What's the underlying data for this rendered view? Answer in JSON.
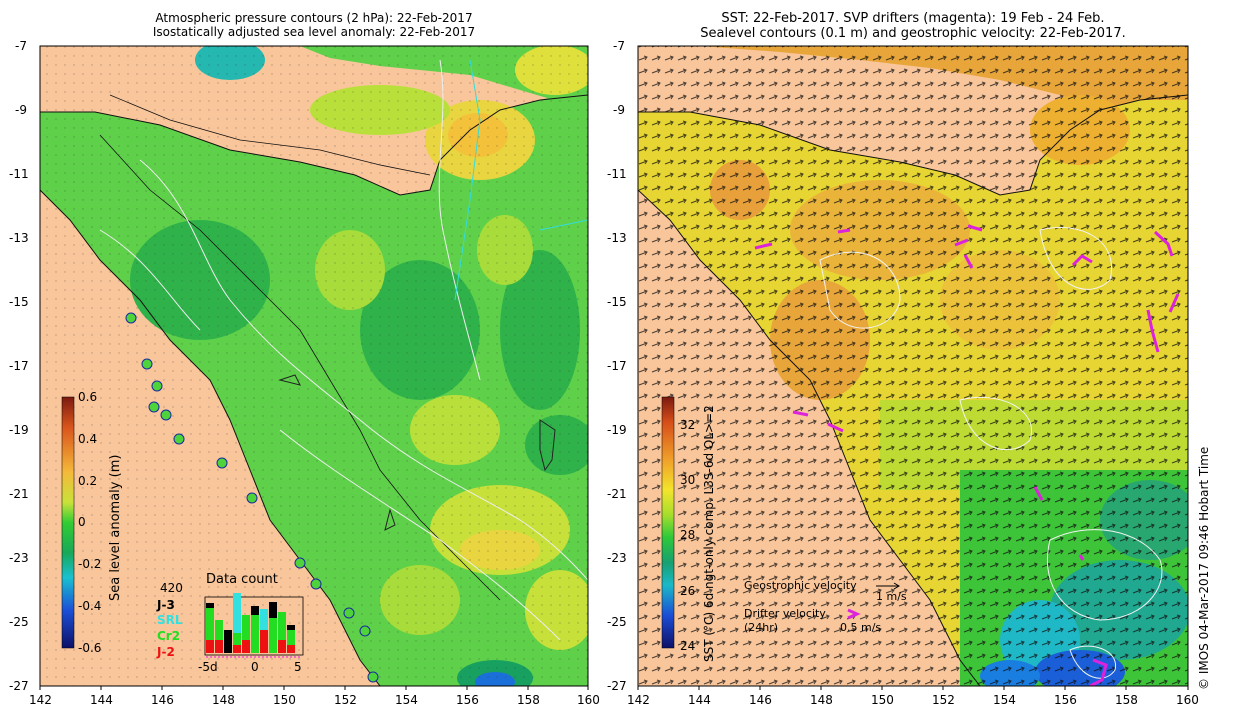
{
  "left_panel": {
    "title_line1": "Atmospheric pressure contours (2 hPa): 22-Feb-2017",
    "title_line2": "Isostatically adjusted sea level anomaly: 22-Feb-2017",
    "x_ticks": [
      "142",
      "144",
      "146",
      "148",
      "150",
      "152",
      "154",
      "156",
      "158",
      "160"
    ],
    "y_ticks": [
      "-7",
      "-9",
      "-11",
      "-13",
      "-15",
      "-17",
      "-19",
      "-21",
      "-23",
      "-25",
      "-27"
    ],
    "colorbar_label": "Sea level anomaly (m)",
    "colorbar_ticks": [
      "0.6",
      "0.4",
      "0.2",
      "0",
      "-0.2",
      "-0.4",
      "-0.6"
    ],
    "data_count": {
      "title": "Data count",
      "max": "420",
      "satellites": [
        {
          "name": "J-3",
          "color": "#000000"
        },
        {
          "name": "SRL",
          "color": "#33e0e0"
        },
        {
          "name": "Cr2",
          "color": "#22dd22"
        },
        {
          "name": "J-2",
          "color": "#ee1111"
        }
      ],
      "x_ticks": [
        "-5d",
        "0",
        "5"
      ]
    }
  },
  "right_panel": {
    "title_line1": "SST: 22-Feb-2017. SVP drifters (magenta): 19 Feb - 24 Feb.",
    "title_line2": "Sealevel contours (0.1 m) and geostrophic velocity: 22-Feb-2017.",
    "x_ticks": [
      "142",
      "144",
      "146",
      "148",
      "150",
      "152",
      "154",
      "156",
      "158",
      "160"
    ],
    "y_ticks": [
      "-7",
      "-9",
      "-11",
      "-13",
      "-15",
      "-17",
      "-19",
      "-21",
      "-23",
      "-25",
      "-27"
    ],
    "colorbar_label": "SST (°C) 6d ngt-only comp. L3S-6d QL>=2",
    "colorbar_ticks": [
      "32",
      "30",
      "28",
      "26",
      "24"
    ],
    "legend": {
      "geo_label": "Geostrophic velocity",
      "geo_scale": "1 m/s",
      "drifter_label_1": "Drifter velocity",
      "drifter_label_2": "(24hr)",
      "drifter_scale": "0.5 m/s"
    }
  },
  "credit": "© IMOS 04-Mar-2017 09:46 Hobart Time"
}
